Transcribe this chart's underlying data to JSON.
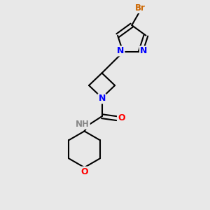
{
  "background_color": "#e8e8e8",
  "bond_color": "#000000",
  "atom_colors": {
    "N": "#0000ff",
    "O": "#ff0000",
    "Br": "#cc6600",
    "H": "#888888",
    "C": "#000000"
  }
}
